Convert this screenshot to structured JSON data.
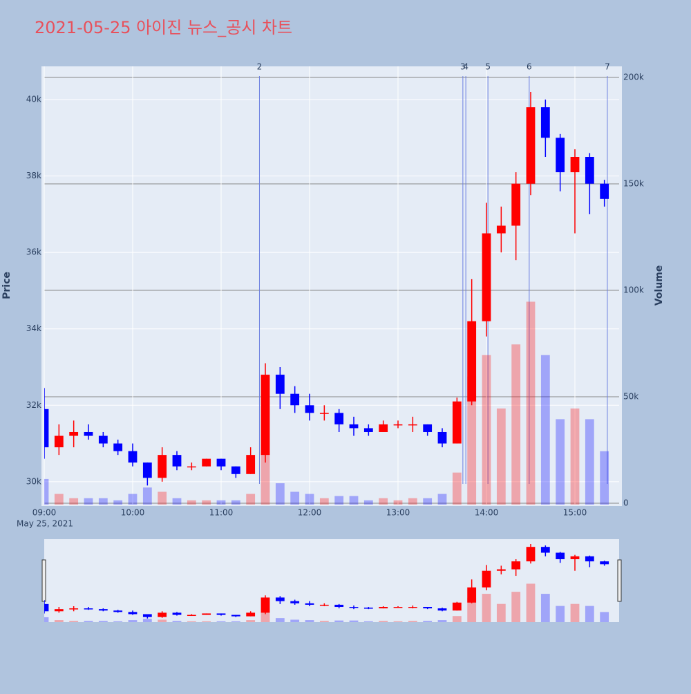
{
  "chart_data": {
    "type": "candlestick",
    "title": "2021-05-25 아이진 뉴스_공시 차트",
    "y_label": "Price",
    "y2_label": "Volume",
    "x_date_label": "May 25, 2021",
    "increasing_color": "#ff0000",
    "decreasing_color": "#0000ff",
    "x": [
      "2021-05-25 09:00",
      "2021-05-25 09:10",
      "2021-05-25 09:20",
      "2021-05-25 09:30",
      "2021-05-25 09:40",
      "2021-05-25 09:50",
      "2021-05-25 10:00",
      "2021-05-25 10:10",
      "2021-05-25 10:20",
      "2021-05-25 10:30",
      "2021-05-25 10:40",
      "2021-05-25 10:50",
      "2021-05-25 11:00",
      "2021-05-25 11:10",
      "2021-05-25 11:20",
      "2021-05-25 11:30",
      "2021-05-25 11:40",
      "2021-05-25 11:50",
      "2021-05-25 12:00",
      "2021-05-25 12:10",
      "2021-05-25 12:20",
      "2021-05-25 12:30",
      "2021-05-25 12:40",
      "2021-05-25 12:50",
      "2021-05-25 13:00",
      "2021-05-25 13:10",
      "2021-05-25 13:20",
      "2021-05-25 13:30",
      "2021-05-25 13:40",
      "2021-05-25 13:50",
      "2021-05-25 14:00",
      "2021-05-25 14:10",
      "2021-05-25 14:20",
      "2021-05-25 14:30",
      "2021-05-25 14:40",
      "2021-05-25 14:50",
      "2021-05-25 15:00",
      "2021-05-25 15:10",
      "2021-05-25 15:20"
    ],
    "open": [
      31900,
      30900,
      31200,
      31300,
      31200,
      31000,
      30800,
      30500,
      30100,
      30700,
      30400,
      30400,
      30600,
      30400,
      30200,
      30700,
      32800,
      32300,
      32000,
      31800,
      31800,
      31500,
      31400,
      31300,
      31500,
      31500,
      31500,
      31300,
      31000,
      32100,
      34200,
      36500,
      36700,
      37800,
      39800,
      39000,
      38100,
      38500,
      37800
    ],
    "high": [
      32450,
      31500,
      31600,
      31500,
      31300,
      31100,
      31000,
      30500,
      30900,
      30800,
      30500,
      30600,
      30600,
      30400,
      30900,
      33100,
      33000,
      32500,
      32300,
      32000,
      31900,
      31700,
      31500,
      31600,
      31600,
      31700,
      31500,
      31400,
      32200,
      35300,
      37300,
      37200,
      38100,
      40200,
      40000,
      39100,
      38700,
      38600,
      37900
    ],
    "low": [
      30600,
      30700,
      30900,
      31100,
      30900,
      30700,
      30400,
      29900,
      30000,
      30300,
      30300,
      30400,
      30300,
      30100,
      30200,
      30500,
      31900,
      31800,
      31600,
      31600,
      31300,
      31200,
      31200,
      31300,
      31400,
      31300,
      31200,
      30900,
      31000,
      32000,
      33800,
      36000,
      35800,
      37500,
      38500,
      37600,
      36500,
      37000,
      37200
    ],
    "close": [
      30900,
      31200,
      31300,
      31200,
      31000,
      30800,
      30500,
      30100,
      30700,
      30400,
      30400,
      30600,
      30400,
      30200,
      30700,
      32800,
      32300,
      32000,
      31800,
      31800,
      31500,
      31400,
      31300,
      31500,
      31500,
      31500,
      31300,
      31000,
      32100,
      34200,
      36500,
      36700,
      37800,
      39800,
      39000,
      38100,
      38500,
      37800,
      37400
    ],
    "volume": [
      12000,
      5000,
      3000,
      3000,
      3000,
      2000,
      5000,
      8000,
      6000,
      3000,
      2000,
      2000,
      2000,
      2000,
      5000,
      25000,
      10000,
      6000,
      5000,
      3000,
      4000,
      4000,
      2000,
      3000,
      2000,
      3000,
      3000,
      5000,
      15000,
      60000,
      70000,
      45000,
      75000,
      95000,
      70000,
      40000,
      45000,
      40000,
      25000
    ],
    "xlim": [
      "2021-05-25 09:00",
      "2021-05-25 15:30"
    ],
    "xticks": [
      {
        "value": "2021-05-25 09:00",
        "label": "09:00"
      },
      {
        "value": "2021-05-25 10:00",
        "label": "10:00"
      },
      {
        "value": "2021-05-25 11:00",
        "label": "11:00"
      },
      {
        "value": "2021-05-25 12:00",
        "label": "12:00"
      },
      {
        "value": "2021-05-25 13:00",
        "label": "13:00"
      },
      {
        "value": "2021-05-25 14:00",
        "label": "14:00"
      },
      {
        "value": "2021-05-25 15:00",
        "label": "15:00"
      }
    ],
    "ylim": [
      29400,
      40870
    ],
    "yticks": [
      {
        "value": 30000,
        "label": "30k"
      },
      {
        "value": 32000,
        "label": "32k"
      },
      {
        "value": 34000,
        "label": "34k"
      },
      {
        "value": 36000,
        "label": "36k"
      },
      {
        "value": 38000,
        "label": "38k"
      },
      {
        "value": 40000,
        "label": "40k"
      }
    ],
    "y2lim": [
      0,
      205200
    ],
    "y2ticks": [
      0,
      {
        "value": 50000,
        "label": "50k"
      },
      {
        "value": 100000,
        "label": "100k"
      },
      {
        "value": 150000,
        "label": "150k"
      },
      {
        "value": 200000,
        "label": "200k"
      }
    ],
    "events": [
      {
        "x": "2021-05-25 11:26",
        "label": "2"
      },
      {
        "x": "2021-05-25 13:44",
        "label": "3"
      },
      {
        "x": "2021-05-25 13:46",
        "label": "4"
      },
      {
        "x": "2021-05-25 14:01",
        "label": "5"
      },
      {
        "x": "2021-05-25 14:29",
        "label": "6"
      },
      {
        "x": "2021-05-25 15:22",
        "label": "7"
      }
    ]
  }
}
